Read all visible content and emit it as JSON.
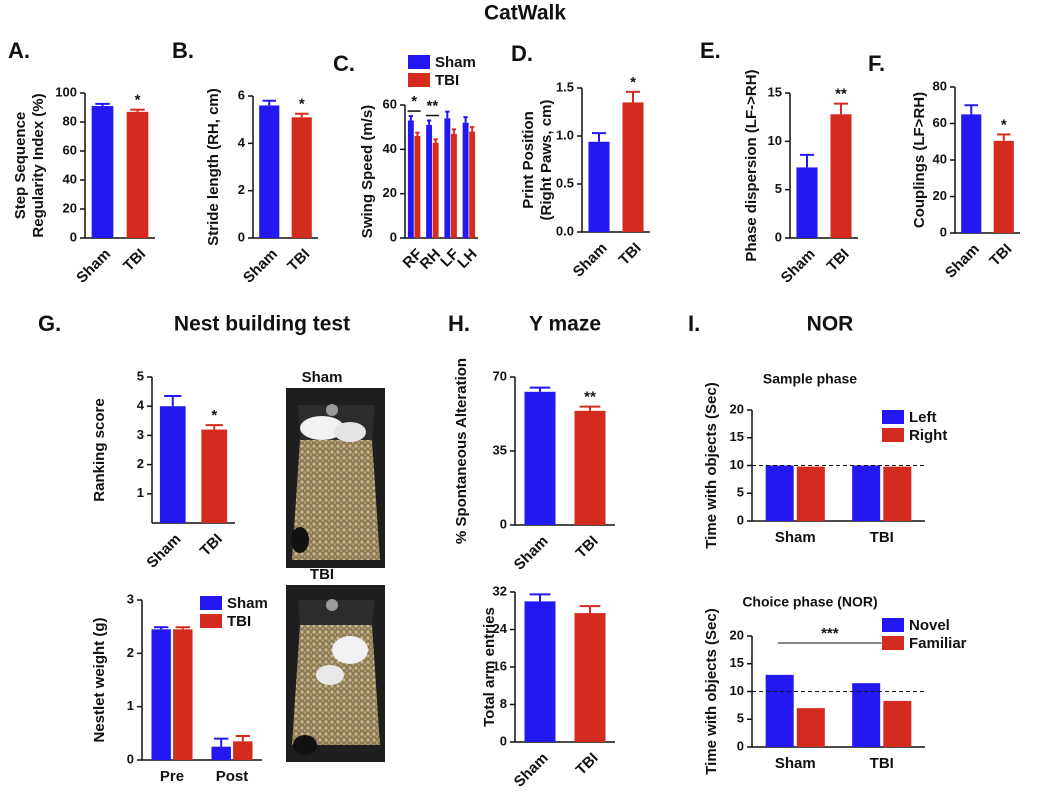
{
  "title": "CatWalk",
  "photo_labels": [
    "Sham",
    "TBI"
  ],
  "chart_data": [
    {
      "type": "bar",
      "panel": "A.",
      "ylabel": [
        "Step Sequence",
        "Regularity Index (%)"
      ],
      "categories": [
        "Sham",
        "TBI"
      ],
      "values": [
        91,
        87
      ],
      "errors": [
        1.5,
        1.5
      ],
      "colors": [
        "#2318f2",
        "#d42b1f"
      ],
      "annotations": [
        null,
        "*"
      ],
      "ylim": [
        0,
        100
      ],
      "yticks": [
        0,
        20,
        40,
        60,
        80,
        100
      ],
      "rotate_labels": true
    },
    {
      "type": "bar",
      "panel": "B.",
      "ylabel": [
        "Stride length (RH, cm)"
      ],
      "categories": [
        "Sham",
        "TBI"
      ],
      "values": [
        5.6,
        5.1
      ],
      "errors": [
        0.2,
        0.15
      ],
      "colors": [
        "#2318f2",
        "#d42b1f"
      ],
      "annotations": [
        null,
        "*"
      ],
      "ylim": [
        0,
        6
      ],
      "yticks": [
        0,
        2,
        4,
        6
      ],
      "rotate_labels": true
    },
    {
      "type": "grouped_bar",
      "panel": "C.",
      "ylabel": [
        "Swing Speed (m/s)"
      ],
      "categories": [
        "RF",
        "RH",
        "LF",
        "LH"
      ],
      "series": [
        {
          "name": "Sham",
          "color": "#2318f2",
          "values": [
            53,
            51,
            54,
            52
          ],
          "errors": [
            2,
            2,
            3,
            2.5
          ]
        },
        {
          "name": "TBI",
          "color": "#d42b1f",
          "values": [
            46,
            43,
            47,
            48
          ],
          "errors": [
            1.5,
            1.5,
            2,
            2
          ]
        }
      ],
      "annotations": [
        "*",
        "**",
        null,
        null
      ],
      "ylim": [
        0,
        60
      ],
      "yticks": [
        0,
        20,
        40,
        60
      ],
      "rotate_labels": true,
      "legend": true
    },
    {
      "type": "bar",
      "panel": "D.",
      "ylabel": [
        "Print Position",
        "(Right Paws, cm)"
      ],
      "categories": [
        "Sham",
        "TBI"
      ],
      "values": [
        0.94,
        1.35
      ],
      "errors": [
        0.09,
        0.11
      ],
      "colors": [
        "#2318f2",
        "#d42b1f"
      ],
      "annotations": [
        null,
        "*"
      ],
      "ylim": [
        0,
        1.5
      ],
      "yticks": [
        {
          "value": 0,
          "label": "0.0"
        },
        0.5,
        {
          "value": 1,
          "label": "1.0"
        },
        1.5
      ],
      "rotate_labels": true
    },
    {
      "type": "bar",
      "panel": "E.",
      "ylabel": [
        "Phase dispersion (LF->RH)"
      ],
      "categories": [
        "Sham",
        "TBI"
      ],
      "values": [
        7.3,
        12.8
      ],
      "errors": [
        1.3,
        1.1
      ],
      "colors": [
        "#2318f2",
        "#d42b1f"
      ],
      "annotations": [
        null,
        "**"
      ],
      "ylim": [
        0,
        15
      ],
      "yticks": [
        0,
        5,
        10,
        15
      ],
      "rotate_labels": true
    },
    {
      "type": "bar",
      "panel": "F.",
      "ylabel": [
        "Couplings (LF>RH)"
      ],
      "categories": [
        "Sham",
        "TBI"
      ],
      "values": [
        65,
        50.5
      ],
      "errors": [
        5,
        3.5
      ],
      "colors": [
        "#2318f2",
        "#d42b1f"
      ],
      "annotations": [
        null,
        "*"
      ],
      "ylim": [
        0,
        80
      ],
      "yticks": [
        0,
        20,
        40,
        60,
        80
      ],
      "rotate_labels": true
    },
    {
      "type": "bar",
      "panel": "G.",
      "heading": "Nest building test",
      "ylabel": [
        "Ranking score"
      ],
      "categories": [
        "Sham",
        "TBI"
      ],
      "values": [
        4.0,
        3.2
      ],
      "errors": [
        0.35,
        0.15
      ],
      "colors": [
        "#2318f2",
        "#d42b1f"
      ],
      "annotations": [
        null,
        "*"
      ],
      "ylim": [
        0,
        5
      ],
      "yticks": [
        1,
        2,
        3,
        4,
        5
      ],
      "rotate_labels": true
    },
    {
      "type": "grouped_bar",
      "ylabel": [
        "Nestlet weight (g)"
      ],
      "categories": [
        "Pre",
        "Post"
      ],
      "series": [
        {
          "name": "Sham",
          "color": "#2318f2",
          "values": [
            2.45,
            0.25
          ],
          "errors": [
            0.04,
            0.15
          ]
        },
        {
          "name": "TBI",
          "color": "#d42b1f",
          "values": [
            2.45,
            0.35
          ],
          "errors": [
            0.04,
            0.1
          ]
        }
      ],
      "ylim": [
        0,
        3
      ],
      "yticks": [
        0,
        1,
        2,
        3
      ],
      "legend": true
    },
    {
      "type": "bar",
      "panel": "H.",
      "heading": "Y maze",
      "ylabel": [
        "% Spontaneous Alteration"
      ],
      "categories": [
        "Sham",
        "TBI"
      ],
      "values": [
        63,
        54
      ],
      "errors": [
        2,
        2
      ],
      "colors": [
        "#2318f2",
        "#d42b1f"
      ],
      "annotations": [
        null,
        "**"
      ],
      "ylim": [
        0,
        70
      ],
      "yticks": [
        0,
        35,
        70
      ],
      "rotate_labels": true
    },
    {
      "type": "bar",
      "ylabel": [
        "Total arm entries"
      ],
      "categories": [
        "Sham",
        "TBI"
      ],
      "values": [
        30,
        27.5
      ],
      "errors": [
        1.5,
        1.5
      ],
      "colors": [
        "#2318f2",
        "#d42b1f"
      ],
      "ylim": [
        0,
        32
      ],
      "yticks": [
        0,
        8,
        16,
        24,
        32
      ],
      "rotate_labels": true
    },
    {
      "type": "grouped_bar",
      "panel": "I.",
      "heading": "NOR",
      "title": "Sample phase",
      "ylabel": [
        "Time with objects (Sec)"
      ],
      "categories": [
        "Sham",
        "TBI"
      ],
      "series": [
        {
          "name": "Left",
          "color": "#2318f2",
          "values": [
            10,
            10
          ]
        },
        {
          "name": "Right",
          "color": "#d42b1f",
          "values": [
            9.8,
            9.8
          ]
        }
      ],
      "reference_line": 10,
      "ylim": [
        0,
        20
      ],
      "yticks": [
        0,
        5,
        10,
        15,
        20
      ],
      "legend": true
    },
    {
      "type": "grouped_bar",
      "title": "Choice phase (NOR)",
      "ylabel": [
        "Time with objects (Sec)"
      ],
      "categories": [
        "Sham",
        "TBI"
      ],
      "series": [
        {
          "name": "Novel",
          "color": "#2318f2",
          "values": [
            13,
            11.5
          ]
        },
        {
          "name": "Familiar",
          "color": "#d42b1f",
          "values": [
            7,
            8.3
          ]
        }
      ],
      "reference_line": 10,
      "bracket": "***",
      "ylim": [
        0,
        20
      ],
      "yticks": [
        0,
        5,
        10,
        15,
        20
      ],
      "legend": true
    }
  ]
}
